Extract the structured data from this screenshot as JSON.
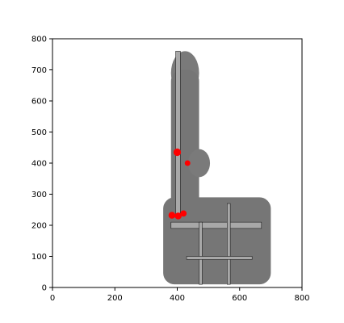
{
  "chart_data": {
    "type": "heatmap",
    "title": "",
    "xlabel": "",
    "ylabel": "",
    "xlim": [
      0,
      800
    ],
    "ylim": [
      0,
      800
    ],
    "xticks": [
      0,
      200,
      400,
      600,
      800
    ],
    "yticks": [
      0,
      100,
      200,
      300,
      400,
      500,
      600,
      700,
      800
    ],
    "xtick_labels": [
      "0",
      "200",
      "400",
      "600",
      "800"
    ],
    "ytick_labels": [
      "0",
      "100",
      "200",
      "300",
      "400",
      "500",
      "600",
      "700",
      "800"
    ],
    "grid": false,
    "background_map": {
      "description_type": "grayscale occupancy map",
      "regions": [
        {
          "kind": "upper-lobe",
          "cx": 425,
          "cy": 690,
          "rx": 45,
          "ry": 70
        },
        {
          "kind": "vertical-arm",
          "x0": 380,
          "x1": 470,
          "y0": 240,
          "y1": 700
        },
        {
          "kind": "middle-room",
          "cx": 470,
          "cy": 400,
          "rx": 35,
          "ry": 45
        },
        {
          "kind": "lower-wing",
          "x0": 355,
          "x1": 700,
          "y0": 10,
          "y1": 290
        }
      ],
      "corridors": [
        {
          "x0": 395,
          "x1": 410,
          "y0": 230,
          "y1": 760
        },
        {
          "x0": 380,
          "x1": 670,
          "y0": 190,
          "y1": 210
        },
        {
          "x0": 470,
          "x1": 480,
          "y0": 10,
          "y1": 210
        },
        {
          "x0": 560,
          "x1": 570,
          "y0": 10,
          "y1": 270
        },
        {
          "x0": 430,
          "x1": 640,
          "y0": 90,
          "y1": 100
        }
      ]
    },
    "highlights": {
      "color": "#ff0000",
      "points": [
        {
          "x": 400,
          "y": 435,
          "r": 12
        },
        {
          "x": 433,
          "y": 400,
          "r": 9
        },
        {
          "x": 383,
          "y": 232,
          "r": 11
        },
        {
          "x": 403,
          "y": 230,
          "r": 11
        },
        {
          "x": 420,
          "y": 238,
          "r": 10
        }
      ]
    }
  }
}
